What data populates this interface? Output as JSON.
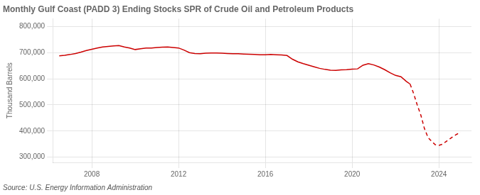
{
  "chart_data": {
    "type": "line",
    "title": "Monthly Gulf Coast (PADD 3) Ending Stocks SPR of Crude Oil and Petroleum Products",
    "ylabel": "Thousand Barrels",
    "source": "Source: U.S. Energy Information Administration",
    "xlim": [
      2006.2,
      2025.5
    ],
    "xticks": [
      2008,
      2012,
      2016,
      2020,
      2024
    ],
    "ylim": [
      280000,
      830000
    ],
    "yticks": [
      {
        "value": 300000,
        "label": "300,000"
      },
      {
        "value": 400000,
        "label": "400,000"
      },
      {
        "value": 500000,
        "label": "500,000"
      },
      {
        "value": 600000,
        "label": "600,000"
      },
      {
        "value": 700000,
        "label": "700,000"
      },
      {
        "value": 800000,
        "label": "800,000"
      }
    ],
    "grid": true,
    "series": [
      {
        "color": "#cc0000",
        "line_style": "solid",
        "x": [
          2006.5,
          2006.75,
          2007.0,
          2007.25,
          2007.5,
          2007.75,
          2008.0,
          2008.25,
          2008.5,
          2008.75,
          2009.0,
          2009.25,
          2009.5,
          2009.75,
          2010.0,
          2010.25,
          2010.5,
          2010.75,
          2011.0,
          2011.25,
          2011.5,
          2011.75,
          2012.0,
          2012.25,
          2012.5,
          2012.75,
          2013.0,
          2013.25,
          2013.5,
          2013.75,
          2014.0,
          2014.25,
          2014.5,
          2014.75,
          2015.0,
          2015.25,
          2015.5,
          2015.75,
          2016.0,
          2016.25,
          2016.5,
          2016.75,
          2017.0,
          2017.25,
          2017.5,
          2017.75,
          2018.0,
          2018.25,
          2018.5,
          2018.75,
          2019.0,
          2019.25,
          2019.5,
          2019.75,
          2020.0,
          2020.25,
          2020.5,
          2020.75,
          2021.0,
          2021.25,
          2021.5,
          2021.75,
          2022.0,
          2022.25,
          2022.5,
          2022.67
        ],
        "values": [
          688000,
          690000,
          693000,
          697000,
          702000,
          708000,
          713000,
          718000,
          722000,
          724000,
          726000,
          727000,
          722000,
          718000,
          712000,
          715000,
          718000,
          718000,
          720000,
          721000,
          722000,
          720000,
          718000,
          710000,
          700000,
          697000,
          696000,
          698000,
          699000,
          699000,
          698000,
          697000,
          696000,
          696000,
          695000,
          694000,
          693000,
          692000,
          692000,
          693000,
          692000,
          691000,
          689000,
          675000,
          665000,
          658000,
          652000,
          646000,
          640000,
          636000,
          633000,
          632000,
          634000,
          635000,
          637000,
          638000,
          652000,
          658000,
          653000,
          645000,
          635000,
          623000,
          613000,
          608000,
          590000,
          580000
        ]
      },
      {
        "color": "#cc0000",
        "line_style": "dashed",
        "x": [
          2022.67,
          2022.83,
          2023.0,
          2023.17,
          2023.33,
          2023.5,
          2023.67,
          2023.83,
          2024.0,
          2024.17,
          2024.33,
          2024.5,
          2024.67,
          2024.83,
          2025.0
        ],
        "values": [
          580000,
          545000,
          500000,
          460000,
          410000,
          375000,
          360000,
          348000,
          345000,
          350000,
          360000,
          370000,
          380000,
          388000,
          395000
        ]
      }
    ]
  }
}
